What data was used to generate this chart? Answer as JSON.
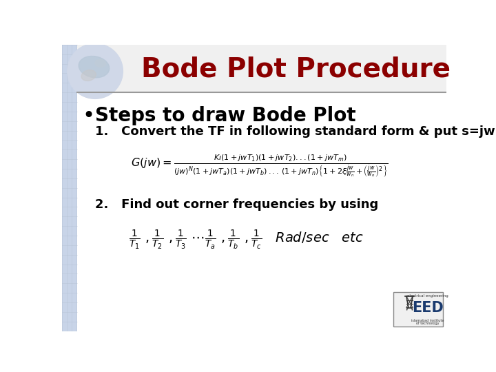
{
  "title": "Bode Plot Procedure",
  "title_color": "#8B0000",
  "title_fontsize": 28,
  "bg_color": "#FFFFFF",
  "bullet": "Steps to draw Bode Plot",
  "bullet_fontsize": 20,
  "step1_text": "1.   Convert the TF in following standard form & put s=jw",
  "step2_text": "2.   Find out corner frequencies by using",
  "header_line_color": "#999999",
  "left_bg_color": "#C8D4E8",
  "header_bg_color": "#F0F0F0"
}
